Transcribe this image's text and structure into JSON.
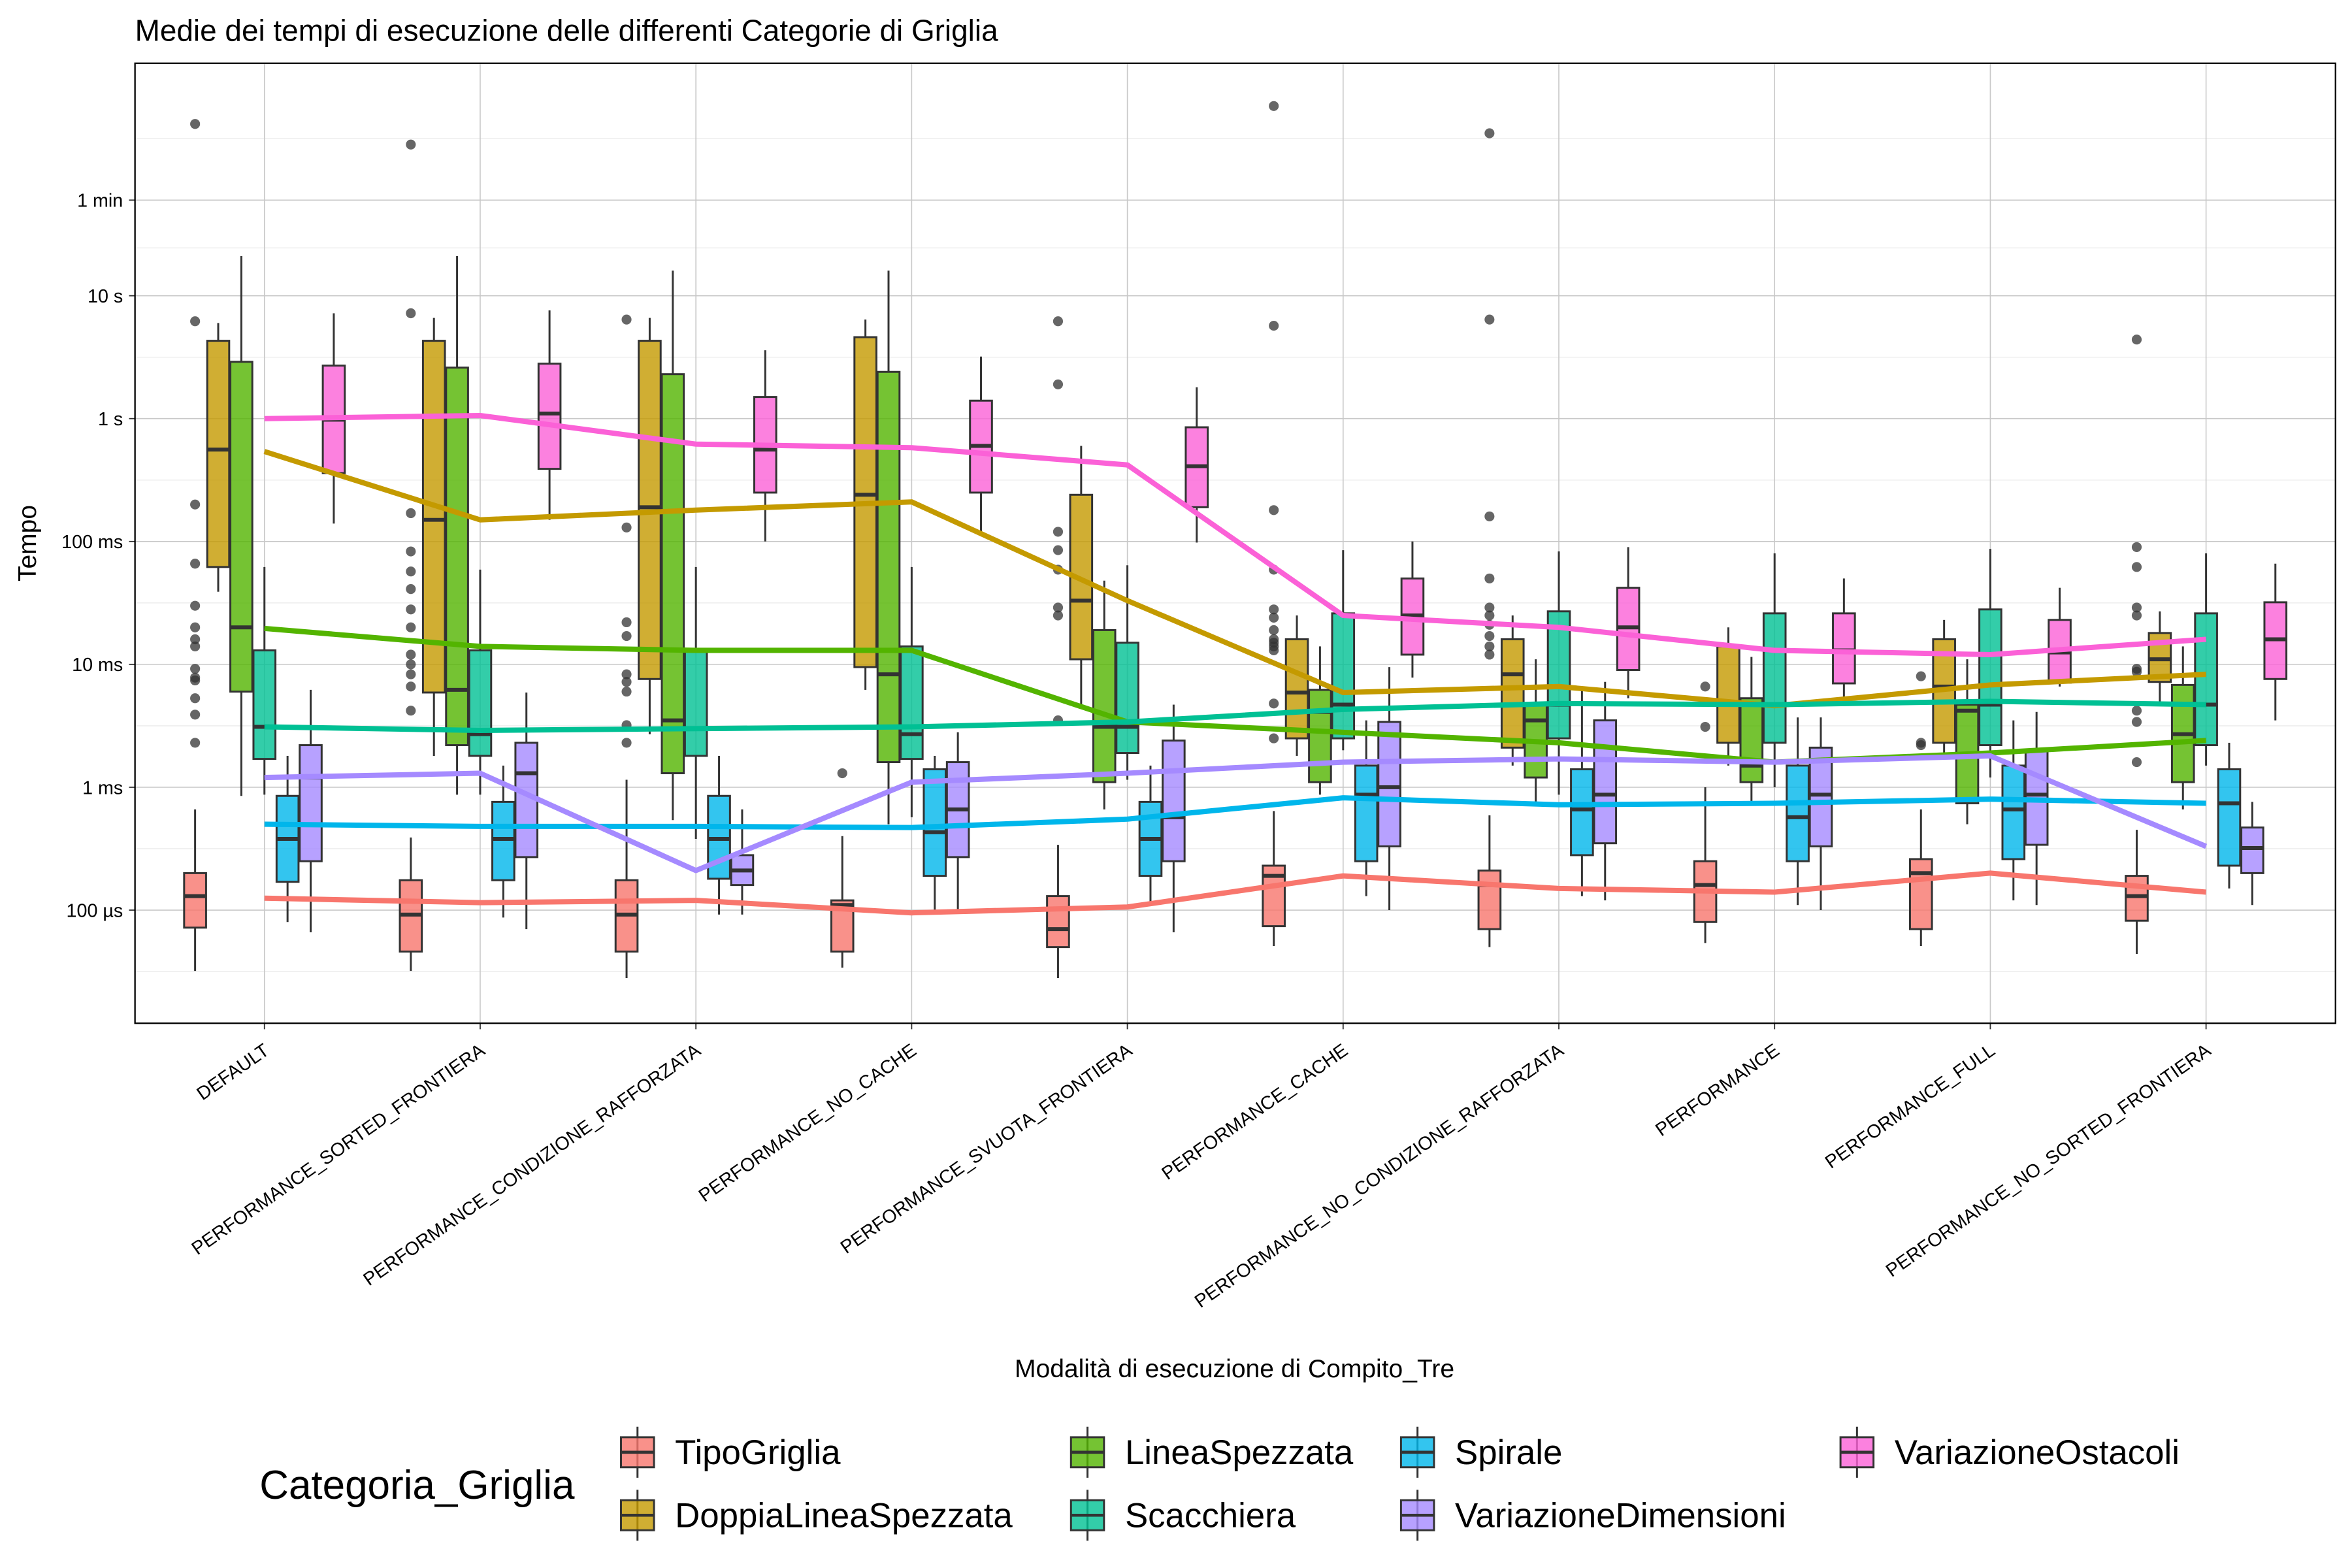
{
  "chart_data": {
    "type": "box",
    "title": "Medie dei tempi di esecuzione delle differenti Categorie di Griglia",
    "x_label": "Modalità di esecuzione di Compito_Tre",
    "y_label": "Tempo",
    "legend_title": "Categoria_Griglia",
    "log_scale": true,
    "grid": true,
    "categories": [
      "DEFAULT",
      "PERFORMANCE_SORTED_FRONTIERA",
      "PERFORMANCE_CONDIZIONE_RAFFORZATA",
      "PERFORMANCE_NO_CACHE",
      "PERFORMANCE_SVUOTA_FRONTIERA",
      "PERFORMANCE_CACHE",
      "PERFORMANCE_NO_CONDIZIONE_RAFFORZATA",
      "PERFORMANCE",
      "PERFORMANCE_FULL",
      "PERFORMANCE_NO_SORTED_FRONTIERA"
    ],
    "ylim": [
      1.2e-05,
      780
    ],
    "yticks": [
      {
        "value": 0.0001,
        "label": "100 µs"
      },
      {
        "value": 0.001,
        "label": "1 ms"
      },
      {
        "value": 0.01,
        "label": "10 ms"
      },
      {
        "value": 0.1,
        "label": "100 ms"
      },
      {
        "value": 1,
        "label": "1 s"
      },
      {
        "value": 10,
        "label": "10 s"
      },
      {
        "value": 60,
        "label": "1 min"
      }
    ],
    "series": [
      {
        "name": "TipoGriglia",
        "color": "#F8766D",
        "boxes": [
          [
            3.2e-05,
            7.2e-05,
            0.00013,
            0.0002,
            0.00066
          ],
          [
            3.2e-05,
            4.6e-05,
            9.2e-05,
            0.000175,
            0.00039
          ],
          [
            2.8e-05,
            4.6e-05,
            9.2e-05,
            0.000175,
            0.00115
          ],
          [
            3.4e-05,
            4.6e-05,
            0.00011,
            0.00012,
            0.0004
          ],
          [
            2.8e-05,
            5e-05,
            7e-05,
            0.00013,
            0.00034
          ],
          [
            5.1e-05,
            7.4e-05,
            0.00019,
            0.00023,
            0.00064
          ],
          [
            5e-05,
            7e-05,
            0.00016,
            0.00021,
            0.00059
          ],
          [
            5.4e-05,
            8e-05,
            0.00016,
            0.00025,
            0.001
          ],
          [
            5.1e-05,
            7e-05,
            0.0002,
            0.00026,
            0.00066
          ],
          [
            4.4e-05,
            8.2e-05,
            0.00013,
            0.00019,
            0.00045
          ]
        ],
        "outliers": [
          [
            250,
            6.2,
            0.2,
            0.066,
            0.03,
            0.02,
            0.016,
            0.014,
            0.0092,
            0.0078,
            0.0074,
            0.0053,
            0.0039,
            0.0023
          ],
          [
            170,
            7.2,
            0.17,
            0.083,
            0.057,
            0.041,
            0.028,
            0.02,
            0.012,
            0.01,
            0.0083,
            0.0066,
            0.0042
          ],
          [
            6.4,
            0.13,
            0.022,
            0.017,
            0.0083,
            0.0072,
            0.006,
            0.0032,
            0.0023
          ],
          [
            0.0013
          ],
          [
            6.2,
            1.9,
            0.12,
            0.085,
            0.059,
            0.029,
            0.025,
            0.0035
          ],
          [
            350,
            5.7,
            0.18,
            0.059,
            0.028,
            0.024,
            0.019,
            0.016,
            0.015,
            0.014,
            0.013,
            0.0048,
            0.0025
          ],
          [
            210,
            6.4,
            0.16,
            0.05,
            0.029,
            0.025,
            0.021,
            0.017,
            0.014,
            0.012
          ],
          [
            0.0066,
            0.0031
          ],
          [
            0.008,
            0.0023,
            0.0022
          ],
          [
            4.4,
            0.09,
            0.062,
            0.029,
            0.025,
            0.0092,
            0.0087,
            0.0042,
            0.0034,
            0.0016
          ]
        ],
        "means": [
          0.000125,
          0.000115,
          0.00012,
          9.5e-05,
          0.000106,
          0.00019,
          0.00015,
          0.00014,
          0.0002,
          0.00014
        ]
      },
      {
        "name": "DoppiaLineaSpezzata",
        "color": "#C49A00",
        "boxes": [
          [
            0.039,
            0.062,
            0.56,
            4.3,
            6.0
          ],
          [
            0.0018,
            0.0059,
            0.15,
            4.3,
            6.6
          ],
          [
            0.0027,
            0.0076,
            0.19,
            4.3,
            6.6
          ],
          [
            0.0062,
            0.0095,
            0.24,
            4.6,
            6.4
          ],
          [
            0.0047,
            0.011,
            0.033,
            0.24,
            0.6
          ],
          [
            0.0018,
            0.0025,
            0.0059,
            0.016,
            0.025
          ],
          [
            0.0015,
            0.0021,
            0.0083,
            0.016,
            0.025
          ],
          [
            0.0015,
            0.0023,
            0.0047,
            0.014,
            0.02
          ],
          [
            0.0019,
            0.0023,
            0.0066,
            0.016,
            0.023
          ],
          [
            0.0047,
            0.0072,
            0.011,
            0.018,
            0.027
          ]
        ],
        "means": [
          0.54,
          0.15,
          0.18,
          0.21,
          0.033,
          0.0059,
          0.0066,
          0.0046,
          0.0068,
          0.0083
        ]
      },
      {
        "name": "LineaSpezzata",
        "color": "#53B400",
        "boxes": [
          [
            0.00085,
            0.006,
            0.02,
            2.9,
            21
          ],
          [
            0.00087,
            0.0022,
            0.0062,
            2.6,
            21
          ],
          [
            0.00054,
            0.0013,
            0.0035,
            2.3,
            16
          ],
          [
            0.0005,
            0.0016,
            0.0083,
            2.4,
            16
          ],
          [
            0.00066,
            0.0011,
            0.0031,
            0.019,
            0.048
          ],
          [
            0.00087,
            0.0011,
            0.0041,
            0.0062,
            0.014
          ],
          [
            0.00076,
            0.0012,
            0.0035,
            0.0047,
            0.011
          ],
          [
            0.00074,
            0.0011,
            0.0015,
            0.0053,
            0.0115
          ],
          [
            0.0005,
            0.00074,
            0.0042,
            0.0047,
            0.011
          ],
          [
            0.00066,
            0.0011,
            0.0027,
            0.0068,
            0.014
          ]
        ],
        "means": [
          0.0196,
          0.014,
          0.013,
          0.013,
          0.0034,
          0.0028,
          0.0023,
          0.0016,
          0.0019,
          0.0024
        ]
      },
      {
        "name": "Scacchiera",
        "color": "#00C094",
        "boxes": [
          [
            0.00087,
            0.0017,
            0.0031,
            0.013,
            0.062
          ],
          [
            0.00087,
            0.0018,
            0.0027,
            0.013,
            0.059
          ],
          [
            0.00038,
            0.0018,
            0.003,
            0.013,
            0.062
          ],
          [
            0.00057,
            0.0017,
            0.0027,
            0.014,
            0.062
          ],
          [
            0.00115,
            0.0019,
            0.0031,
            0.015,
            0.064
          ],
          [
            0.002,
            0.0025,
            0.0047,
            0.026,
            0.085
          ],
          [
            0.00087,
            0.0025,
            0.0047,
            0.027,
            0.083
          ],
          [
            0.001,
            0.0023,
            0.0047,
            0.026,
            0.08
          ],
          [
            0.0012,
            0.0022,
            0.0047,
            0.028,
            0.087
          ],
          [
            0.0015,
            0.0022,
            0.0047,
            0.026,
            0.08
          ]
        ],
        "means": [
          0.0031,
          0.0029,
          0.003,
          0.0031,
          0.0034,
          0.0043,
          0.0048,
          0.0047,
          0.005,
          0.0047
        ]
      },
      {
        "name": "Spirale",
        "color": "#00B6EB",
        "boxes": [
          [
            8e-05,
            0.00017,
            0.00038,
            0.00085,
            0.0018
          ],
          [
            8.7e-05,
            0.000175,
            0.00038,
            0.00076,
            0.0015
          ],
          [
            9.2e-05,
            0.00018,
            0.00038,
            0.00085,
            0.0018
          ],
          [
            9.2e-05,
            0.00019,
            0.00043,
            0.0014,
            0.0018
          ],
          [
            0.000115,
            0.00019,
            0.00038,
            0.00076,
            0.0015
          ],
          [
            0.00013,
            0.00025,
            0.00087,
            0.0015,
            0.0035
          ],
          [
            0.00013,
            0.00028,
            0.00066,
            0.0014,
            0.0062
          ],
          [
            0.00011,
            0.00025,
            0.00057,
            0.0015,
            0.0037
          ],
          [
            0.00012,
            0.00026,
            0.00066,
            0.0015,
            0.0035
          ],
          [
            0.00015,
            0.00023,
            0.00074,
            0.0014,
            0.0023
          ]
        ],
        "means": [
          0.0005,
          0.00048,
          0.00048,
          0.00047,
          0.00055,
          0.00082,
          0.00072,
          0.00074,
          0.0008,
          0.00074
        ]
      },
      {
        "name": "VariazioneDimensioni",
        "color": "#A58AFF",
        "boxes": [
          [
            6.6e-05,
            0.00025,
            0.0012,
            0.0022,
            0.0062
          ],
          [
            7e-05,
            0.00027,
            0.0013,
            0.0023,
            0.0059
          ],
          [
            9.2e-05,
            0.00016,
            0.00021,
            0.00028,
            0.00066
          ],
          [
            0.0001,
            0.00027,
            0.00066,
            0.0016,
            0.0028
          ],
          [
            6.6e-05,
            0.00025,
            0.00057,
            0.0024,
            0.0047
          ],
          [
            0.0001,
            0.00033,
            0.001,
            0.0034,
            0.0095
          ],
          [
            0.00012,
            0.00035,
            0.00087,
            0.0035,
            0.0072
          ],
          [
            0.0001,
            0.00033,
            0.00087,
            0.0021,
            0.0037
          ],
          [
            0.00011,
            0.00034,
            0.00087,
            0.002,
            0.0041
          ],
          [
            0.00011,
            0.0002,
            0.00032,
            0.00047,
            0.00076
          ]
        ],
        "means": [
          0.0012,
          0.0013,
          0.00021,
          0.0011,
          0.0013,
          0.0016,
          0.0017,
          0.0016,
          0.0018,
          0.00033
        ]
      },
      {
        "name": "VariazioneOstacoli",
        "color": "#FB61D7",
        "boxes": [
          [
            0.14,
            0.36,
            0.98,
            2.7,
            7.2
          ],
          [
            0.15,
            0.39,
            1.1,
            2.8,
            7.6
          ],
          [
            0.1,
            0.25,
            0.56,
            1.5,
            3.6
          ],
          [
            0.12,
            0.25,
            0.6,
            1.4,
            3.2
          ],
          [
            0.098,
            0.19,
            0.41,
            0.85,
            1.8
          ],
          [
            0.0078,
            0.012,
            0.025,
            0.05,
            0.1
          ],
          [
            0.0053,
            0.009,
            0.02,
            0.042,
            0.09
          ],
          [
            0.0054,
            0.007,
            0.013,
            0.026,
            0.05
          ],
          [
            0.0066,
            0.0071,
            0.0125,
            0.023,
            0.042
          ],
          [
            0.0035,
            0.0076,
            0.016,
            0.032,
            0.066
          ]
        ],
        "means": [
          1.0,
          1.06,
          0.62,
          0.58,
          0.42,
          0.025,
          0.02,
          0.013,
          0.012,
          0.016
        ]
      }
    ]
  }
}
